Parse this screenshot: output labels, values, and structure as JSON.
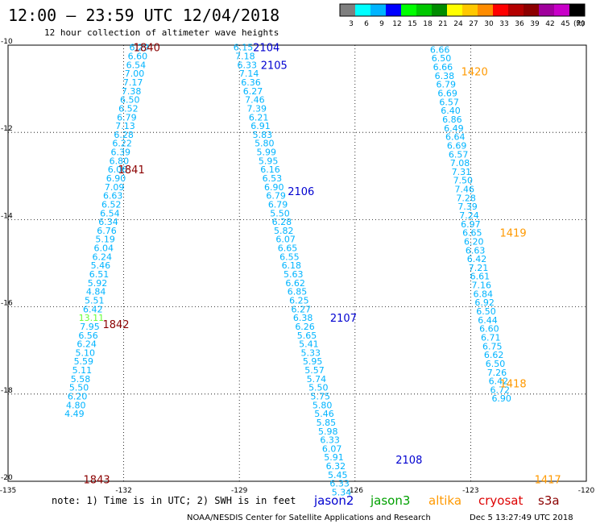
{
  "header": {
    "title": "12:00 – 23:59 UTC 12/04/2018",
    "subtitle": "12 hour collection of altimeter wave heights"
  },
  "colorbar": {
    "colors": [
      "#7f7f7f",
      "#00ffff",
      "#00b4ff",
      "#0000ff",
      "#00ff00",
      "#00c800",
      "#008c00",
      "#ffff00",
      "#ffc800",
      "#ff8c00",
      "#ff0000",
      "#b40000",
      "#8c0000",
      "#a0009c",
      "#c800c8",
      "#000000"
    ],
    "labels": [
      "3",
      "6",
      "9",
      "12",
      "15",
      "18",
      "21",
      "24",
      "27",
      "30",
      "33",
      "36",
      "39",
      "42",
      "45",
      "70"
    ],
    "unit": "(ft)"
  },
  "footer": {
    "note": "note: 1) Time is in UTC; 2) SWH is in feet",
    "satellites": [
      {
        "name": "jason2",
        "color": "#0000d0"
      },
      {
        "name": "jason3",
        "color": "#00a000"
      },
      {
        "name": "altika",
        "color": "#ff9900"
      },
      {
        "name": "cryosat",
        "color": "#dd0000"
      },
      {
        "name": "s3a",
        "color": "#8b0000"
      }
    ],
    "credit": "NOAA/NESDIS Center for Satellite Applications and Research",
    "timestamp": "Dec  5 13:27:49 UTC 2018"
  },
  "chart_data": {
    "type": "scatter",
    "title": "12:00 – 23:59 UTC 12/04/2018",
    "subtitle": "12 hour collection of altimeter wave heights",
    "xlim": [
      -135,
      -120
    ],
    "ylim": [
      -20,
      -10
    ],
    "xticks": [
      "-135",
      "-132",
      "-129",
      "-126",
      "-123",
      "-120"
    ],
    "yticks": [
      "-10",
      "-12",
      "-14",
      "-16",
      "-18",
      "-20"
    ],
    "grid": true,
    "tracks": [
      {
        "satellite": "s3a",
        "label_color": "#8b0000",
        "value_color": "#00b4ff",
        "pass_labels": [
          {
            "text": "1840",
            "x": -131.4,
            "y": -10.05
          },
          {
            "text": "1841",
            "x": -131.8,
            "y": -12.85
          },
          {
            "text": "1842",
            "x": -132.2,
            "y": -16.4
          },
          {
            "text": "1843",
            "x": -132.7,
            "y": -19.95
          }
        ],
        "points": [
          {
            "y": -10.05,
            "x": -131.6,
            "swh": "6.29"
          },
          {
            "y": -10.25,
            "x": -131.64,
            "swh": "6.60"
          },
          {
            "y": -10.45,
            "x": -131.68,
            "swh": "6.54"
          },
          {
            "y": -10.65,
            "x": -131.72,
            "swh": "7.00"
          },
          {
            "y": -10.85,
            "x": -131.76,
            "swh": "7.17"
          },
          {
            "y": -11.05,
            "x": -131.8,
            "swh": "7.38"
          },
          {
            "y": -11.25,
            "x": -131.84,
            "swh": "6.50"
          },
          {
            "y": -11.45,
            "x": -131.88,
            "swh": "6.52"
          },
          {
            "y": -11.65,
            "x": -131.92,
            "swh": "6.79"
          },
          {
            "y": -11.85,
            "x": -131.96,
            "swh": "7.13"
          },
          {
            "y": -12.05,
            "x": -132.0,
            "swh": "6.28"
          },
          {
            "y": -12.25,
            "x": -132.04,
            "swh": "6.22"
          },
          {
            "y": -12.45,
            "x": -132.08,
            "swh": "6.39"
          },
          {
            "y": -12.65,
            "x": -132.12,
            "swh": "6.80"
          },
          {
            "y": -12.85,
            "x": -132.16,
            "swh": "6.06"
          },
          {
            "y": -13.05,
            "x": -132.2,
            "swh": "6.90"
          },
          {
            "y": -13.25,
            "x": -132.24,
            "swh": "7.09"
          },
          {
            "y": -13.45,
            "x": -132.28,
            "swh": "6.63"
          },
          {
            "y": -13.65,
            "x": -132.32,
            "swh": "6.52"
          },
          {
            "y": -13.85,
            "x": -132.36,
            "swh": "6.54"
          },
          {
            "y": -14.05,
            "x": -132.4,
            "swh": "6.34"
          },
          {
            "y": -14.25,
            "x": -132.44,
            "swh": "6.76"
          },
          {
            "y": -14.45,
            "x": -132.48,
            "swh": "5.19"
          },
          {
            "y": -14.65,
            "x": -132.52,
            "swh": "6.04"
          },
          {
            "y": -14.85,
            "x": -132.56,
            "swh": "6.24"
          },
          {
            "y": -15.05,
            "x": -132.6,
            "swh": "5.46"
          },
          {
            "y": -15.25,
            "x": -132.64,
            "swh": "6.51"
          },
          {
            "y": -15.45,
            "x": -132.68,
            "swh": "5.92"
          },
          {
            "y": -15.65,
            "x": -132.72,
            "swh": "4.84"
          },
          {
            "y": -15.85,
            "x": -132.76,
            "swh": "5.51"
          },
          {
            "y": -16.05,
            "x": -132.8,
            "swh": "6.42"
          },
          {
            "y": -16.25,
            "x": -132.84,
            "swh": "13.11",
            "color": "#66ff33"
          },
          {
            "y": -16.45,
            "x": -132.88,
            "swh": "7.95"
          },
          {
            "y": -16.65,
            "x": -132.92,
            "swh": "6.56"
          },
          {
            "y": -16.85,
            "x": -132.96,
            "swh": "6.24"
          },
          {
            "y": -17.05,
            "x": -133.0,
            "swh": "5.10"
          },
          {
            "y": -17.25,
            "x": -133.04,
            "swh": "5.59"
          },
          {
            "y": -17.45,
            "x": -133.08,
            "swh": "5.11"
          },
          {
            "y": -17.65,
            "x": -133.12,
            "swh": "5.58"
          },
          {
            "y": -17.85,
            "x": -133.16,
            "swh": "5.50"
          },
          {
            "y": -18.05,
            "x": -133.2,
            "swh": "6.20"
          },
          {
            "y": -18.25,
            "x": -133.24,
            "swh": "4.80"
          },
          {
            "y": -18.45,
            "x": -133.28,
            "swh": "4.49"
          }
        ]
      },
      {
        "satellite": "jason2",
        "label_color": "#0000d0",
        "value_color": "#00b4ff",
        "pass_labels": [
          {
            "text": "2104",
            "x": -128.3,
            "y": -10.05
          },
          {
            "text": "2105",
            "x": -128.1,
            "y": -10.45
          },
          {
            "text": "2106",
            "x": -127.4,
            "y": -13.35
          },
          {
            "text": "2107",
            "x": -126.3,
            "y": -16.25
          },
          {
            "text": "2108",
            "x": -124.6,
            "y": -19.5
          }
        ],
        "points": [
          {
            "y": -10.05,
            "x": -128.9,
            "swh": "6.15"
          },
          {
            "y": -10.25,
            "x": -128.85,
            "swh": "7.18"
          },
          {
            "y": -10.45,
            "x": -128.8,
            "swh": "6.33"
          },
          {
            "y": -10.65,
            "x": -128.75,
            "swh": "7.14"
          },
          {
            "y": -10.85,
            "x": -128.7,
            "swh": "6.36"
          },
          {
            "y": -11.05,
            "x": -128.65,
            "swh": "6.27"
          },
          {
            "y": -11.25,
            "x": -128.6,
            "swh": "7.46"
          },
          {
            "y": -11.45,
            "x": -128.55,
            "swh": "7.39"
          },
          {
            "y": -11.65,
            "x": -128.5,
            "swh": "6.21"
          },
          {
            "y": -11.85,
            "x": -128.45,
            "swh": "6.91"
          },
          {
            "y": -12.05,
            "x": -128.4,
            "swh": "5.83"
          },
          {
            "y": -12.25,
            "x": -128.35,
            "swh": "5.80"
          },
          {
            "y": -12.45,
            "x": -128.3,
            "swh": "5.99"
          },
          {
            "y": -12.65,
            "x": -128.25,
            "swh": "5.95"
          },
          {
            "y": -12.85,
            "x": -128.2,
            "swh": "6.16"
          },
          {
            "y": -13.05,
            "x": -128.15,
            "swh": "6.53"
          },
          {
            "y": -13.25,
            "x": -128.1,
            "swh": "6.90"
          },
          {
            "y": -13.45,
            "x": -128.05,
            "swh": "6.79"
          },
          {
            "y": -13.65,
            "x": -128.0,
            "swh": "6.79"
          },
          {
            "y": -13.85,
            "x": -127.95,
            "swh": "5.50"
          },
          {
            "y": -14.05,
            "x": -127.9,
            "swh": "6.28"
          },
          {
            "y": -14.25,
            "x": -127.85,
            "swh": "5.82"
          },
          {
            "y": -14.45,
            "x": -127.8,
            "swh": "6.07"
          },
          {
            "y": -14.65,
            "x": -127.75,
            "swh": "6.65"
          },
          {
            "y": -14.85,
            "x": -127.7,
            "swh": "6.55"
          },
          {
            "y": -15.05,
            "x": -127.65,
            "swh": "6.18"
          },
          {
            "y": -15.25,
            "x": -127.6,
            "swh": "5.63"
          },
          {
            "y": -15.45,
            "x": -127.55,
            "swh": "6.62"
          },
          {
            "y": -15.65,
            "x": -127.5,
            "swh": "6.85"
          },
          {
            "y": -15.85,
            "x": -127.45,
            "swh": "6.25"
          },
          {
            "y": -16.05,
            "x": -127.4,
            "swh": "6.27"
          },
          {
            "y": -16.25,
            "x": -127.35,
            "swh": "6.38"
          },
          {
            "y": -16.45,
            "x": -127.3,
            "swh": "6.26"
          },
          {
            "y": -16.65,
            "x": -127.25,
            "swh": "5.65"
          },
          {
            "y": -16.85,
            "x": -127.2,
            "swh": "5.41"
          },
          {
            "y": -17.05,
            "x": -127.15,
            "swh": "5.33"
          },
          {
            "y": -17.25,
            "x": -127.1,
            "swh": "5.95"
          },
          {
            "y": -17.45,
            "x": -127.05,
            "swh": "5.57"
          },
          {
            "y": -17.65,
            "x": -127.0,
            "swh": "5.74"
          },
          {
            "y": -17.85,
            "x": -126.95,
            "swh": "5.50"
          },
          {
            "y": -18.05,
            "x": -126.9,
            "swh": "5.75"
          },
          {
            "y": -18.25,
            "x": -126.85,
            "swh": "5.80"
          },
          {
            "y": -18.45,
            "x": -126.8,
            "swh": "5.46"
          },
          {
            "y": -18.65,
            "x": -126.75,
            "swh": "5.85"
          },
          {
            "y": -18.85,
            "x": -126.7,
            "swh": "5.98"
          },
          {
            "y": -19.05,
            "x": -126.65,
            "swh": "6.33"
          },
          {
            "y": -19.25,
            "x": -126.6,
            "swh": "6.07"
          },
          {
            "y": -19.45,
            "x": -126.55,
            "swh": "5.91"
          },
          {
            "y": -19.65,
            "x": -126.5,
            "swh": "6.32"
          },
          {
            "y": -19.85,
            "x": -126.45,
            "swh": "5.45"
          },
          {
            "y": -20.05,
            "x": -126.4,
            "swh": "6.33"
          },
          {
            "y": -20.25,
            "x": -126.35,
            "swh": "5.34"
          }
        ]
      },
      {
        "satellite": "altika",
        "label_color": "#ff9900",
        "value_color": "#00b4ff",
        "pass_labels": [
          {
            "text": "1420",
            "x": -122.9,
            "y": -10.6
          },
          {
            "text": "1419",
            "x": -121.9,
            "y": -14.3
          },
          {
            "text": "1418",
            "x": -121.9,
            "y": -17.75
          },
          {
            "text": "1417",
            "x": -121.0,
            "y": -19.95
          }
        ],
        "points": [
          {
            "y": -10.1,
            "x": -123.8,
            "swh": "6.66"
          },
          {
            "y": -10.3,
            "x": -123.76,
            "swh": "6.50"
          },
          {
            "y": -10.5,
            "x": -123.72,
            "swh": "6.66"
          },
          {
            "y": -10.7,
            "x": -123.68,
            "swh": "6.38"
          },
          {
            "y": -10.9,
            "x": -123.64,
            "swh": "6.79"
          },
          {
            "y": -11.1,
            "x": -123.6,
            "swh": "6.69"
          },
          {
            "y": -11.3,
            "x": -123.56,
            "swh": "6.57"
          },
          {
            "y": -11.5,
            "x": -123.52,
            "swh": "6.40"
          },
          {
            "y": -11.7,
            "x": -123.48,
            "swh": "6.86"
          },
          {
            "y": -11.9,
            "x": -123.44,
            "swh": "6.49"
          },
          {
            "y": -12.1,
            "x": -123.4,
            "swh": "6.64"
          },
          {
            "y": -12.3,
            "x": -123.36,
            "swh": "6.69"
          },
          {
            "y": -12.5,
            "x": -123.32,
            "swh": "6.57"
          },
          {
            "y": -12.7,
            "x": -123.28,
            "swh": "7.08"
          },
          {
            "y": -12.9,
            "x": -123.24,
            "swh": "7.31"
          },
          {
            "y": -13.1,
            "x": -123.2,
            "swh": "7.50"
          },
          {
            "y": -13.3,
            "x": -123.16,
            "swh": "7.46"
          },
          {
            "y": -13.5,
            "x": -123.12,
            "swh": "7.28"
          },
          {
            "y": -13.7,
            "x": -123.08,
            "swh": "7.39"
          },
          {
            "y": -13.9,
            "x": -123.04,
            "swh": "7.24"
          },
          {
            "y": -14.1,
            "x": -123.0,
            "swh": "6.97"
          },
          {
            "y": -14.3,
            "x": -122.96,
            "swh": "6.65"
          },
          {
            "y": -14.5,
            "x": -122.92,
            "swh": "6.20"
          },
          {
            "y": -14.7,
            "x": -122.88,
            "swh": "6.63"
          },
          {
            "y": -14.9,
            "x": -122.84,
            "swh": "6.42"
          },
          {
            "y": -15.1,
            "x": -122.8,
            "swh": "7.21"
          },
          {
            "y": -15.3,
            "x": -122.76,
            "swh": "6.61"
          },
          {
            "y": -15.5,
            "x": -122.72,
            "swh": "7.16"
          },
          {
            "y": -15.7,
            "x": -122.68,
            "swh": "6.84"
          },
          {
            "y": -15.9,
            "x": -122.64,
            "swh": "6.92"
          },
          {
            "y": -16.1,
            "x": -122.6,
            "swh": "6.50"
          },
          {
            "y": -16.3,
            "x": -122.56,
            "swh": "6.44"
          },
          {
            "y": -16.5,
            "x": -122.52,
            "swh": "6.60"
          },
          {
            "y": -16.7,
            "x": -122.48,
            "swh": "6.71"
          },
          {
            "y": -16.9,
            "x": -122.44,
            "swh": "6.75"
          },
          {
            "y": -17.1,
            "x": -122.4,
            "swh": "6.62"
          },
          {
            "y": -17.3,
            "x": -122.36,
            "swh": "6.50"
          },
          {
            "y": -17.5,
            "x": -122.32,
            "swh": "7.26"
          },
          {
            "y": -17.7,
            "x": -122.28,
            "swh": "6.42"
          },
          {
            "y": -17.9,
            "x": -122.24,
            "swh": "6.72"
          },
          {
            "y": -18.1,
            "x": -122.2,
            "swh": "6.90"
          }
        ]
      }
    ]
  }
}
